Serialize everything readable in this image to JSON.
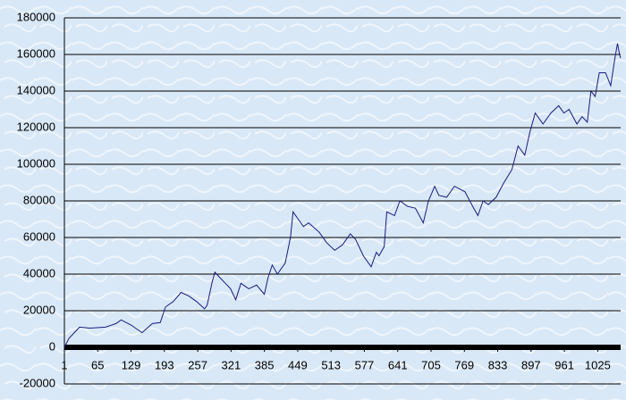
{
  "chart_data": {
    "type": "line",
    "x": [
      1,
      10,
      20,
      30,
      50,
      80,
      100,
      110,
      130,
      150,
      170,
      185,
      195,
      210,
      225,
      240,
      255,
      270,
      275,
      285,
      290,
      300,
      310,
      320,
      330,
      340,
      355,
      370,
      385,
      392,
      400,
      410,
      425,
      435,
      440,
      450,
      460,
      470,
      490,
      505,
      520,
      535,
      550,
      560,
      575,
      590,
      600,
      605,
      615,
      620,
      635,
      645,
      660,
      675,
      690,
      700,
      712,
      720,
      735,
      750,
      770,
      785,
      795,
      805,
      815,
      830,
      845,
      860,
      872,
      885,
      895,
      905,
      920,
      935,
      950,
      960,
      970,
      985,
      995,
      1005,
      1012,
      1020,
      1028,
      1040,
      1050,
      1058,
      1063,
      1067,
      1069
    ],
    "values": [
      0,
      5000,
      8000,
      11000,
      10500,
      11000,
      13000,
      15000,
      12000,
      8000,
      13000,
      13500,
      22000,
      25000,
      30000,
      28000,
      25000,
      21000,
      23000,
      36000,
      41000,
      38000,
      35000,
      32000,
      26000,
      35000,
      32000,
      34000,
      29000,
      38000,
      45000,
      40000,
      46000,
      60000,
      74000,
      70000,
      66000,
      68000,
      63000,
      57000,
      53000,
      56000,
      62000,
      59000,
      50000,
      44000,
      52000,
      50000,
      55000,
      74000,
      72000,
      80000,
      77000,
      76000,
      68000,
      80000,
      88000,
      83000,
      82000,
      88000,
      85000,
      77000,
      72000,
      80000,
      78000,
      82000,
      90000,
      97000,
      110000,
      105000,
      118000,
      128000,
      122000,
      128000,
      132000,
      128000,
      130000,
      122000,
      126000,
      123000,
      140000,
      137000,
      150000,
      150000,
      143000,
      158000,
      166000,
      160000,
      158000
    ],
    "color": "#1a1a80",
    "xlim": [
      1,
      1069
    ],
    "xticks": [
      1,
      65,
      129,
      193,
      257,
      321,
      385,
      449,
      513,
      577,
      641,
      705,
      769,
      833,
      897,
      961,
      1025
    ],
    "ylim": [
      -20000,
      180000
    ],
    "yticks": [
      -20000,
      0,
      20000,
      40000,
      60000,
      80000,
      100000,
      120000,
      140000,
      160000,
      180000
    ],
    "grid": true
  }
}
